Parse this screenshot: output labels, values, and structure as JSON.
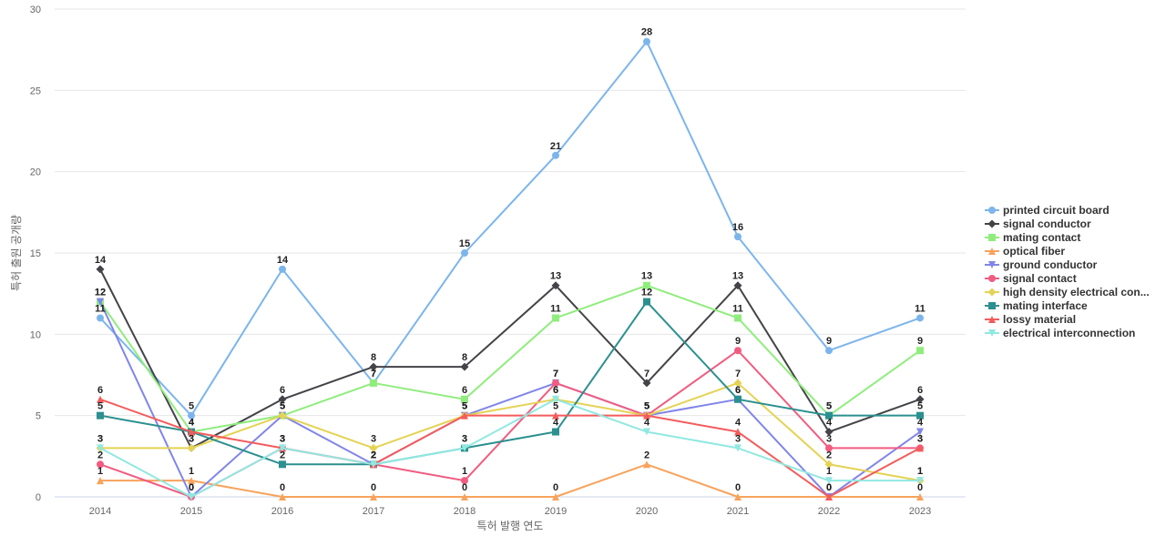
{
  "chart_data": {
    "type": "line",
    "xlabel": "특허 발행 연도",
    "ylabel": "특허 출원 공개량",
    "ylim": [
      0,
      30
    ],
    "yticks": [
      0,
      5,
      10,
      15,
      20,
      25,
      30
    ],
    "grid": true,
    "legend_position": "right",
    "x": [
      "2014",
      "2015",
      "2016",
      "2017",
      "2018",
      "2019",
      "2020",
      "2021",
      "2022",
      "2023"
    ],
    "series": [
      {
        "name": "printed circuit board",
        "legend_label": "printed circuit board",
        "color": "#7cb5ec",
        "marker": "circle",
        "values": [
          11,
          5,
          14,
          7,
          15,
          21,
          28,
          16,
          9,
          11
        ]
      },
      {
        "name": "signal conductor",
        "legend_label": "signal conductor",
        "color": "#434348",
        "marker": "diamond",
        "values": [
          14,
          3,
          6,
          8,
          8,
          13,
          7,
          13,
          4,
          6
        ]
      },
      {
        "name": "mating contact",
        "legend_label": "mating contact",
        "color": "#90ed7d",
        "marker": "square",
        "values": [
          12,
          4,
          5,
          7,
          6,
          11,
          13,
          11,
          5,
          9
        ]
      },
      {
        "name": "optical fiber",
        "legend_label": "optical fiber",
        "color": "#f7a35c",
        "marker": "triangle",
        "values": [
          1,
          1,
          0,
          0,
          0,
          0,
          2,
          0,
          0,
          0
        ]
      },
      {
        "name": "ground conductor",
        "legend_label": "ground conductor",
        "color": "#8085e9",
        "marker": "triangle-down",
        "values": [
          12,
          0,
          5,
          2,
          5,
          7,
          5,
          6,
          0,
          4
        ]
      },
      {
        "name": "signal contact",
        "legend_label": "signal contact",
        "color": "#f15c80",
        "marker": "circle",
        "values": [
          2,
          0,
          3,
          2,
          1,
          7,
          5,
          9,
          3,
          3
        ]
      },
      {
        "name": "high density electrical connector",
        "legend_label": "high density electrical con...",
        "color": "#e4d354",
        "marker": "diamond",
        "values": [
          3,
          3,
          5,
          3,
          5,
          6,
          5,
          7,
          2,
          1
        ]
      },
      {
        "name": "mating interface",
        "legend_label": "mating interface",
        "color": "#2b908f",
        "marker": "square",
        "values": [
          5,
          4,
          2,
          2,
          3,
          4,
          12,
          6,
          5,
          5
        ]
      },
      {
        "name": "lossy material",
        "legend_label": "lossy material",
        "color": "#f45b5b",
        "marker": "triangle",
        "values": [
          6,
          4,
          3,
          2,
          5,
          5,
          5,
          4,
          0,
          3
        ]
      },
      {
        "name": "electrical interconnection",
        "legend_label": "electrical interconnection",
        "color": "#91e8e1",
        "marker": "triangle-down",
        "values": [
          3,
          0,
          3,
          2,
          3,
          6,
          4,
          3,
          1,
          1
        ]
      }
    ]
  }
}
